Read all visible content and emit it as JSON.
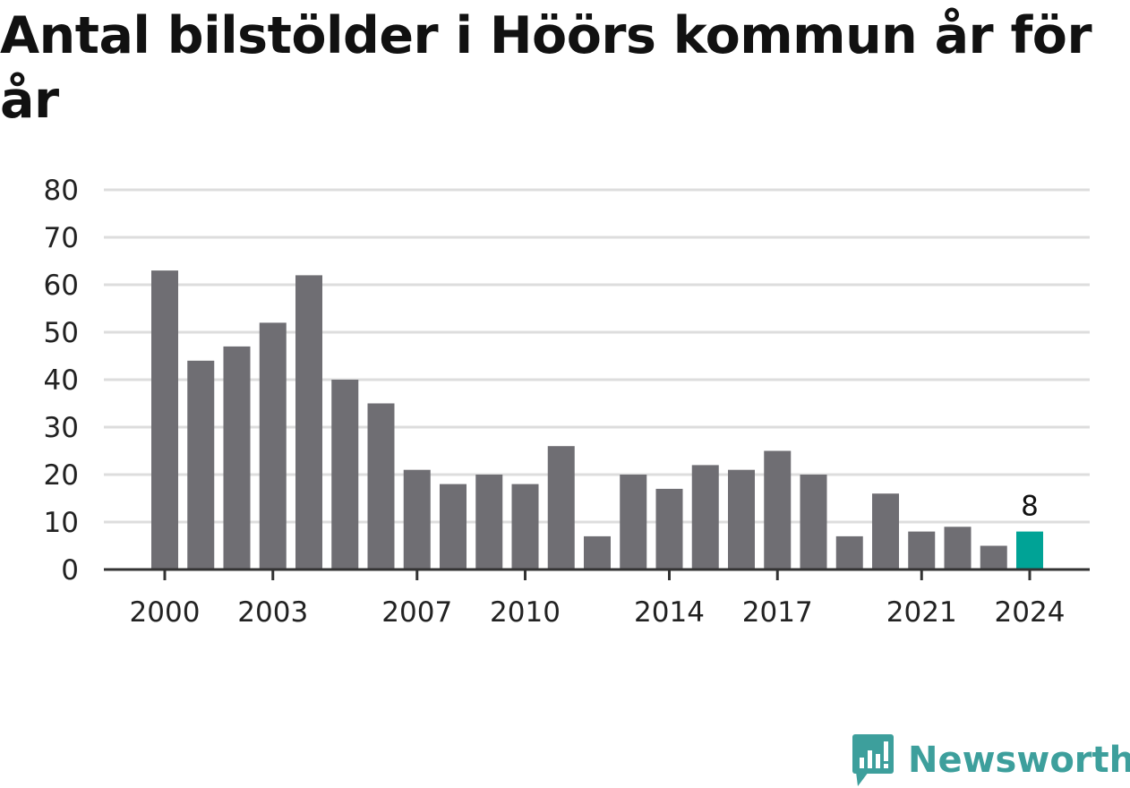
{
  "title": "Antal bilstölder i Höörs kommun år för år",
  "brand": {
    "name": "Newsworthy",
    "icon": "newsworthy-logo-icon",
    "color": "#3d9f9c"
  },
  "colors": {
    "bar": "#6f6e73",
    "highlight": "#00a396",
    "grid": "#dddddd",
    "axis": "#333333"
  },
  "chart_data": {
    "type": "bar",
    "title": "Antal bilstölder i Höörs kommun år för år",
    "xlabel": "",
    "ylabel": "",
    "ylim": [
      0,
      80
    ],
    "yticks": [
      0,
      10,
      20,
      30,
      40,
      50,
      60,
      70,
      80
    ],
    "categories": [
      "2000",
      "2001",
      "2002",
      "2003",
      "2004",
      "2005",
      "2006",
      "2007",
      "2008",
      "2009",
      "2010",
      "2011",
      "2012",
      "2013",
      "2014",
      "2015",
      "2016",
      "2017",
      "2018",
      "2019",
      "2020",
      "2021",
      "2022",
      "2023",
      "2024"
    ],
    "xtick_labels": [
      "2000",
      "2003",
      "2007",
      "2010",
      "2014",
      "2017",
      "2021",
      "2024"
    ],
    "values": [
      63,
      44,
      47,
      52,
      62,
      40,
      35,
      21,
      18,
      20,
      18,
      26,
      7,
      20,
      17,
      22,
      21,
      25,
      20,
      7,
      16,
      8,
      9,
      5,
      8
    ],
    "highlight": {
      "category": "2024",
      "label": "8"
    },
    "grid": true,
    "legend": "none"
  }
}
